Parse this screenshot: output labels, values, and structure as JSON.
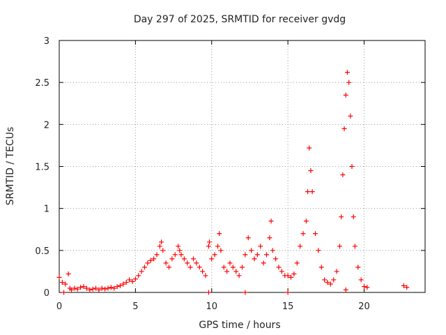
{
  "chart_data": {
    "type": "scatter",
    "title": "Day 297 of 2025, SRMTID for receiver gvdg",
    "xlabel": "GPS time / hours",
    "ylabel": "SRMTID / TECUs",
    "xlim": [
      0,
      24
    ],
    "ylim": [
      0,
      3
    ],
    "xticks": [
      0,
      5,
      10,
      15,
      20
    ],
    "xtick_labels": [
      "0",
      "5",
      "10",
      "15",
      "20"
    ],
    "yticks": [
      0,
      0.5,
      1,
      1.5,
      2,
      2.5,
      3
    ],
    "ytick_labels": [
      "0",
      "0.5",
      "1",
      "1.5",
      "2",
      "2.5",
      "3"
    ],
    "grid": true,
    "marker": "+",
    "color": "#ff0000",
    "series": [
      {
        "name": "SRMTID",
        "x": [
          0.0,
          0.2,
          0.4,
          0.6,
          0.7,
          0.8,
          1.0,
          1.2,
          1.4,
          1.6,
          1.8,
          2.0,
          2.2,
          2.4,
          2.6,
          2.8,
          3.0,
          3.2,
          3.4,
          3.6,
          3.8,
          4.0,
          4.2,
          4.4,
          4.6,
          4.8,
          5.0,
          5.2,
          5.4,
          5.6,
          5.8,
          6.0,
          6.2,
          6.4,
          6.6,
          6.7,
          6.8,
          7.0,
          7.2,
          7.4,
          7.6,
          7.8,
          7.9,
          8.0,
          8.2,
          8.4,
          8.6,
          8.8,
          9.0,
          9.2,
          9.4,
          9.6,
          9.8,
          9.85,
          10.0,
          10.2,
          10.4,
          10.5,
          10.6,
          10.8,
          11.0,
          11.2,
          11.4,
          11.6,
          11.8,
          12.0,
          12.2,
          12.4,
          12.6,
          12.8,
          13.0,
          13.2,
          13.4,
          13.6,
          13.8,
          13.9,
          14.0,
          14.2,
          14.4,
          14.6,
          14.8,
          15.0,
          15.2,
          15.4,
          15.6,
          15.8,
          16.0,
          16.2,
          16.3,
          16.4,
          16.5,
          16.6,
          16.8,
          17.0,
          17.2,
          17.4,
          17.6,
          17.8,
          18.0,
          18.2,
          18.4,
          18.5,
          18.6,
          18.7,
          18.8,
          18.9,
          19.0,
          19.1,
          19.2,
          19.3,
          19.4,
          19.6,
          19.8,
          20.0,
          20.2,
          22.6,
          22.8,
          0.3,
          9.8,
          12.2,
          15.0,
          18.8
        ],
        "y": [
          0.18,
          0.12,
          0.1,
          0.22,
          0.05,
          0.03,
          0.05,
          0.04,
          0.06,
          0.07,
          0.05,
          0.03,
          0.04,
          0.05,
          0.03,
          0.05,
          0.04,
          0.05,
          0.06,
          0.05,
          0.07,
          0.08,
          0.1,
          0.12,
          0.15,
          0.13,
          0.16,
          0.2,
          0.25,
          0.3,
          0.35,
          0.38,
          0.4,
          0.45,
          0.55,
          0.6,
          0.5,
          0.35,
          0.3,
          0.4,
          0.45,
          0.55,
          0.5,
          0.45,
          0.4,
          0.35,
          0.3,
          0.4,
          0.35,
          0.3,
          0.25,
          0.2,
          0.55,
          0.6,
          0.4,
          0.45,
          0.55,
          0.7,
          0.5,
          0.3,
          0.25,
          0.35,
          0.3,
          0.25,
          0.2,
          0.3,
          0.45,
          0.65,
          0.5,
          0.4,
          0.45,
          0.55,
          0.35,
          0.45,
          0.65,
          0.85,
          0.5,
          0.4,
          0.3,
          0.25,
          0.2,
          0.2,
          0.18,
          0.22,
          0.35,
          0.55,
          0.7,
          0.85,
          1.2,
          1.72,
          1.45,
          1.2,
          0.7,
          0.5,
          0.3,
          0.15,
          0.12,
          0.1,
          0.15,
          0.25,
          0.55,
          0.9,
          1.4,
          1.95,
          2.35,
          2.62,
          2.5,
          2.1,
          1.5,
          0.9,
          0.55,
          0.3,
          0.15,
          0.07,
          0.06,
          0.08,
          0.06,
          0.0,
          0.0,
          0.0,
          0.0,
          0.03
        ]
      }
    ]
  }
}
